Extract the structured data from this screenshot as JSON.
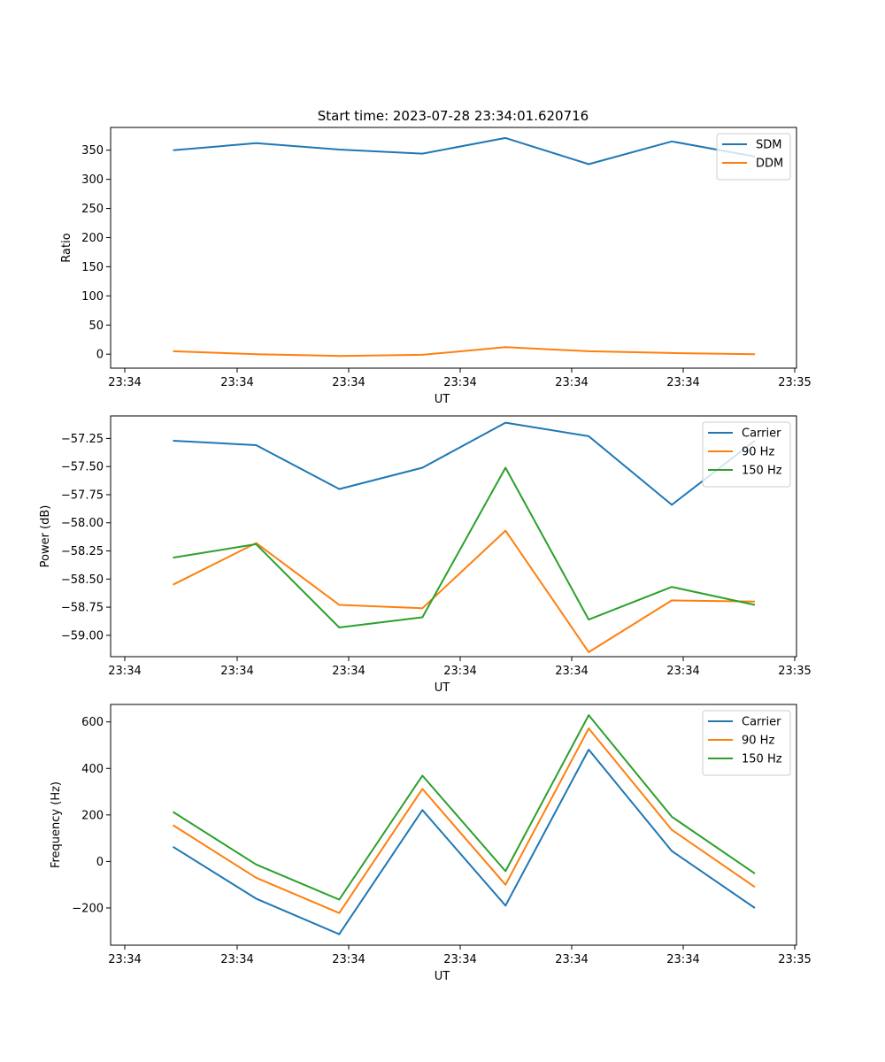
{
  "title": "Start time: 2023-07-28 23:34:01.620716",
  "colors": {
    "blue": "#1f77b4",
    "orange": "#ff7f0e",
    "green": "#2ca02c"
  },
  "chart_data": [
    {
      "type": "line",
      "title": "Start time: 2023-07-28 23:34:01.620716",
      "xlabel": "UT",
      "ylabel": "Ratio",
      "x_ticks": [
        "23:34",
        "23:34",
        "23:34",
        "23:34",
        "23:34",
        "23:34",
        "23:35"
      ],
      "x": [
        1,
        2,
        3,
        4,
        5,
        6,
        7,
        8
      ],
      "xlim": [
        0.25,
        8.5
      ],
      "ylim": [
        -24,
        389
      ],
      "y_ticks": [
        0,
        50,
        100,
        150,
        200,
        250,
        300,
        350
      ],
      "legend_position": "top-right",
      "series": [
        {
          "name": "SDM",
          "color": "#1f77b4",
          "values": [
            350,
            362,
            351,
            344,
            371,
            326,
            365,
            339
          ]
        },
        {
          "name": "DDM",
          "color": "#ff7f0e",
          "values": [
            5,
            0,
            -3,
            -1,
            12,
            5,
            2,
            0
          ]
        }
      ]
    },
    {
      "type": "line",
      "xlabel": "UT",
      "ylabel": "Power (dB)",
      "x_ticks": [
        "23:34",
        "23:34",
        "23:34",
        "23:34",
        "23:34",
        "23:34",
        "23:35"
      ],
      "x": [
        1,
        2,
        3,
        4,
        5,
        6,
        7,
        8
      ],
      "xlim": [
        0.25,
        8.5
      ],
      "ylim": [
        -59.19,
        -57.05
      ],
      "y_ticks": [
        -59.0,
        -58.75,
        -58.5,
        -58.25,
        -58.0,
        -57.75,
        -57.5,
        -57.25
      ],
      "y_tick_labels": [
        "−59.00",
        "−58.75",
        "−58.50",
        "−58.25",
        "−58.00",
        "−57.75",
        "−57.50",
        "−57.25"
      ],
      "legend_position": "top-right",
      "series": [
        {
          "name": "Carrier",
          "color": "#1f77b4",
          "values": [
            -57.27,
            -57.31,
            -57.7,
            -57.51,
            -57.11,
            -57.23,
            -57.84,
            -57.27
          ]
        },
        {
          "name": "90 Hz",
          "color": "#ff7f0e",
          "values": [
            -58.55,
            -58.18,
            -58.73,
            -58.76,
            -58.07,
            -59.15,
            -58.69,
            -58.7
          ]
        },
        {
          "name": "150 Hz",
          "color": "#2ca02c",
          "values": [
            -58.31,
            -58.19,
            -58.93,
            -58.84,
            -57.51,
            -58.86,
            -58.57,
            -58.73
          ]
        }
      ]
    },
    {
      "type": "line",
      "xlabel": "UT",
      "ylabel": "Frequency (Hz)",
      "x_ticks": [
        "23:34",
        "23:34",
        "23:34",
        "23:34",
        "23:34",
        "23:34",
        "23:35"
      ],
      "x": [
        1,
        2,
        3,
        4,
        5,
        6,
        7,
        8
      ],
      "xlim": [
        0.25,
        8.5
      ],
      "ylim": [
        -360,
        675
      ],
      "y_ticks": [
        -200,
        0,
        200,
        400,
        600
      ],
      "y_tick_labels": [
        "−200",
        "0",
        "200",
        "400",
        "600"
      ],
      "legend_position": "top-right",
      "series": [
        {
          "name": "Carrier",
          "color": "#1f77b4",
          "values": [
            63,
            -160,
            -313,
            221,
            -190,
            481,
            45,
            -200
          ]
        },
        {
          "name": "90 Hz",
          "color": "#ff7f0e",
          "values": [
            156,
            -70,
            -222,
            312,
            -100,
            572,
            136,
            -110
          ]
        },
        {
          "name": "150 Hz",
          "color": "#2ca02c",
          "values": [
            213,
            -13,
            -164,
            369,
            -42,
            629,
            192,
            -52
          ]
        }
      ]
    }
  ]
}
